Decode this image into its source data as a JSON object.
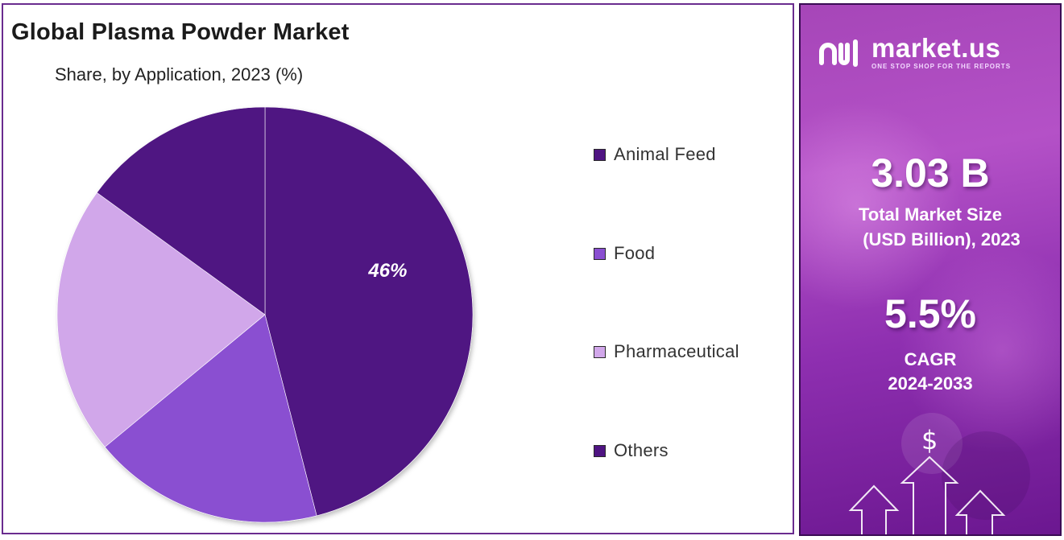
{
  "title": "Global Plasma Powder Market",
  "subtitle": "Share, by Application, 2023 (%)",
  "chart_data": {
    "type": "pie",
    "categories": [
      "Animal Feed",
      "Food",
      "Pharmaceutical",
      "Others"
    ],
    "values": [
      46,
      18,
      21,
      15
    ],
    "colors": [
      "#4f1482",
      "#8a4fd1",
      "#d1a7ea",
      "#4f1482"
    ],
    "data_labels": [
      "46%",
      "",
      "",
      ""
    ],
    "legend_position": "right"
  },
  "legend": [
    {
      "label": "Animal Feed",
      "color": "#4f1482"
    },
    {
      "label": "Food",
      "color": "#8a4fd1"
    },
    {
      "label": "Pharmaceutical",
      "color": "#d1a7ea"
    },
    {
      "label": "Others",
      "color": "#4f1482"
    }
  ],
  "info": {
    "brand_name": "market.us",
    "brand_tagline": "ONE STOP SHOP FOR THE REPORTS",
    "market_size_value": "3.03 B",
    "market_size_label_1": "Total Market Size",
    "market_size_label_2": "(USD Billion), 2023",
    "cagr_value": "5.5%",
    "cagr_label": "CAGR",
    "cagr_period": "2024-2033",
    "dollar_symbol": "$"
  }
}
